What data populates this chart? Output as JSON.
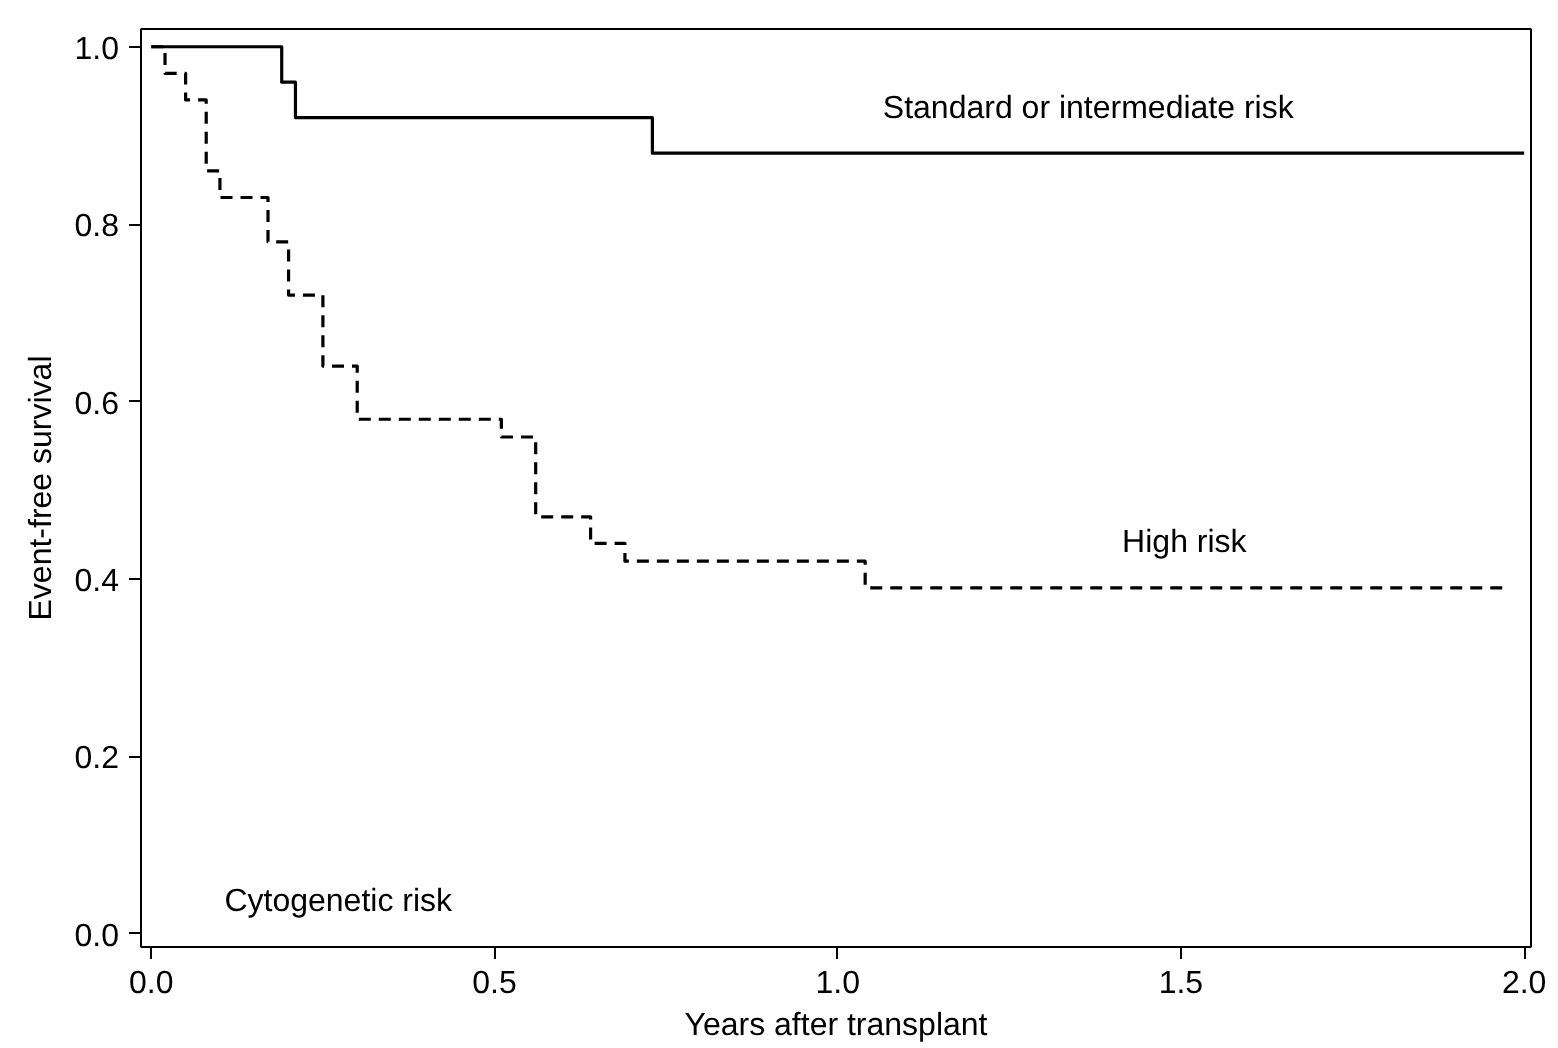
{
  "chart_data": {
    "type": "step",
    "xlabel": "Years after transplant",
    "ylabel": "Event-free survival",
    "xlim": [
      -0.015,
      2.01
    ],
    "ylim": [
      -0.015,
      1.02
    ],
    "xticks": [
      {
        "value": 0,
        "label": "0.0"
      },
      0.5,
      {
        "value": 1,
        "label": "1.0"
      },
      1.5,
      {
        "value": 2,
        "label": "2.0"
      }
    ],
    "yticks": [
      {
        "value": 0,
        "label": "0.0"
      },
      0.2,
      0.4,
      0.6,
      0.8,
      {
        "value": 1,
        "label": "1.0"
      }
    ],
    "grid": false,
    "series": [
      {
        "name": "Standard or intermediate risk",
        "color": "#000000",
        "line_style": "solid",
        "x": [
          0,
          0.19,
          0.21,
          0.73,
          2.0
        ],
        "values": [
          1.0,
          0.96,
          0.92,
          0.88,
          0.88
        ]
      },
      {
        "name": "High risk",
        "color": "#000000",
        "line_style": "dashed",
        "x": [
          0,
          0.02,
          0.05,
          0.08,
          0.1,
          0.17,
          0.2,
          0.25,
          0.3,
          0.51,
          0.56,
          0.64,
          0.69,
          1.04,
          1.97
        ],
        "values": [
          1.0,
          0.97,
          0.94,
          0.86,
          0.83,
          0.78,
          0.72,
          0.64,
          0.58,
          0.56,
          0.47,
          0.44,
          0.42,
          0.39,
          0.39
        ]
      }
    ],
    "annotations": [
      "Cytogenetic risk"
    ]
  }
}
